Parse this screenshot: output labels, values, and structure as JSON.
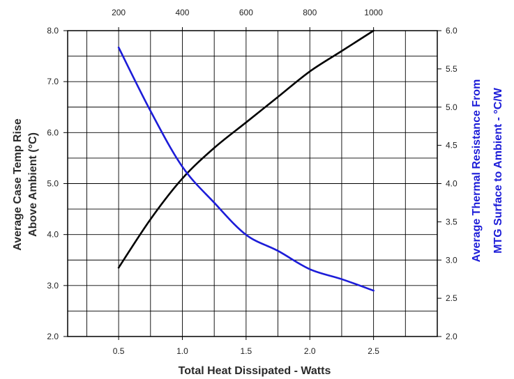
{
  "chart_data": {
    "type": "line",
    "xlabel": "Total Heat Dissipated - Watts",
    "x_ticks": [
      "0.5",
      "1.0",
      "1.5",
      "2.0",
      "2.5"
    ],
    "top_ticks": [
      "200",
      "400",
      "600",
      "800",
      "1000"
    ],
    "xlim": [
      0.1,
      3.0
    ],
    "ylabel_left_line1": "Average Case Temp Rise",
    "ylabel_left_line2": "Above Ambient (°C)",
    "ylim_left": [
      2.0,
      8.0
    ],
    "y_left_ticks": [
      "2.0",
      "3.0",
      "4.0",
      "5.0",
      "6.0",
      "7.0",
      "8.0"
    ],
    "ylabel_right_line1": "Average Thermal Resistance From",
    "ylabel_right_line2": "MTG Surface to Ambient - °C/W",
    "ylim_right": [
      2.0,
      6.0
    ],
    "y_right_ticks": [
      "2.0",
      "2.5",
      "3.0",
      "3.5",
      "4.0",
      "4.5",
      "5.0",
      "5.5",
      "6.0"
    ],
    "grid": true,
    "series": [
      {
        "axis": "left",
        "color": "#000000",
        "x": [
          0.5,
          0.75,
          1.0,
          1.25,
          1.5,
          1.75,
          2.0,
          2.25,
          2.5
        ],
        "y": [
          3.35,
          4.3,
          5.1,
          5.7,
          6.2,
          6.7,
          7.2,
          7.6,
          8.0
        ]
      },
      {
        "axis": "right",
        "color": "#1c1cd8",
        "x": [
          0.5,
          0.75,
          1.0,
          1.25,
          1.5,
          1.75,
          2.0,
          2.25,
          2.5
        ],
        "y": [
          5.78,
          4.95,
          4.22,
          3.75,
          3.33,
          3.12,
          2.88,
          2.75,
          2.6
        ]
      }
    ]
  }
}
